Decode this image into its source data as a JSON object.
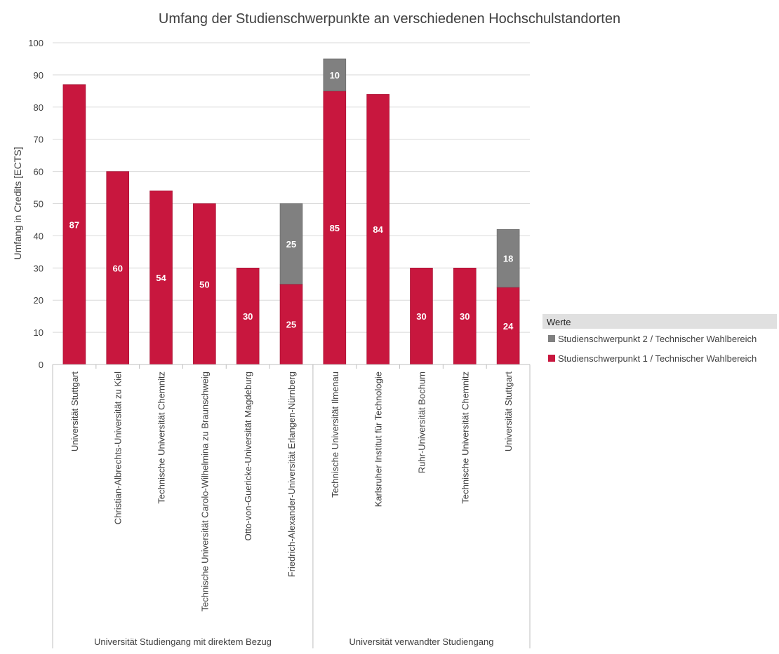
{
  "chart_data": {
    "type": "bar",
    "stacked": true,
    "title": "Umfang der Studienschwerpunkte an verschiedenen Hochschulstandorten",
    "ylabel": "Umfang in Credits [ECTS]",
    "xlabel": "",
    "ylim": [
      0,
      100
    ],
    "yticks": [
      0,
      10,
      20,
      30,
      40,
      50,
      60,
      70,
      80,
      90,
      100
    ],
    "grid": true,
    "legend": {
      "title": "Werte",
      "placement": "right"
    },
    "groups": [
      {
        "label": "Universität Studiengang mit direktem Bezug",
        "count": 6
      },
      {
        "label": "Universität verwandter Studiengang",
        "count": 5
      }
    ],
    "categories": [
      "Universität Stuttgart",
      "Christian-Albrechts-Universität zu Kiel",
      "Technische Universität Chemnitz",
      "Technische Universität Carolo-Wilhelmina zu Braunschweig",
      "Otto-von-Guericke-Universität Magdeburg",
      "Friedrich-Alexander-Universität Erlangen-Nürnberg",
      "Technische Universität Ilmenau",
      "Karlsruher Institut für Technologie",
      "Ruhr-Universität Bochum",
      "Technische Universität Chemnitz",
      "Universität Stuttgart"
    ],
    "series": [
      {
        "name": "Studienschwerpunkt 1 / Technischer Wahlbereich",
        "color": "#C8173E",
        "values": [
          87,
          60,
          54,
          50,
          30,
          25,
          85,
          84,
          30,
          30,
          24
        ]
      },
      {
        "name": "Studienschwerpunkt 2 / Technischer Wahlbereich",
        "color": "#808080",
        "values": [
          0,
          0,
          0,
          0,
          0,
          25,
          10,
          0,
          0,
          0,
          18
        ]
      }
    ]
  }
}
